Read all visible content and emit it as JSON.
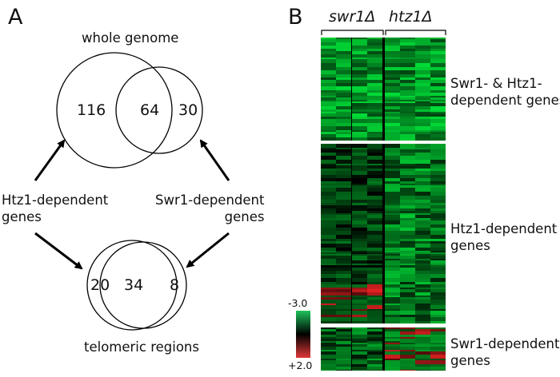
{
  "panel_a": {
    "letter": "A",
    "top_title": "whole genome",
    "top_counts": [
      "116",
      "64",
      "30"
    ],
    "bottom_title": "telomeric regions",
    "bottom_counts": [
      "20",
      "34",
      "8"
    ],
    "left_label": [
      "Htz1-dependent",
      "genes"
    ],
    "right_label": [
      "Swr1-dependent",
      "genes"
    ]
  },
  "panel_b": {
    "letter": "B",
    "groups": [
      "swr1Δ",
      "htz1Δ"
    ],
    "sections": [
      [
        "Swr1- & Htz1-",
        "dependent genes"
      ],
      [
        "Htz1-dependent",
        "genes"
      ],
      [
        "Swr1-dependent",
        "genes"
      ]
    ],
    "scale_top": "-3.0",
    "scale_bottom": "+2.0"
  }
}
